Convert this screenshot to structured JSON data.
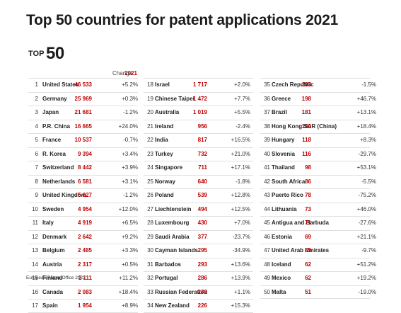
{
  "title": "Top 50 countries for patent applications 2021",
  "badge": {
    "top": "TOP",
    "num": "50"
  },
  "header": {
    "year": "2021",
    "change": "Change"
  },
  "footer": "European Patent Office 2022",
  "columns": [
    [
      {
        "rank": "1",
        "name": "United States",
        "value": "46 533",
        "change": "+5.2%"
      },
      {
        "rank": "2",
        "name": "Germany",
        "value": "25 969",
        "change": "+0.3%"
      },
      {
        "rank": "3",
        "name": "Japan",
        "value": "21 681",
        "change": "-1.2%"
      },
      {
        "rank": "4",
        "name": "P.R. China",
        "value": "16 665",
        "change": "+24.0%"
      },
      {
        "rank": "5",
        "name": "France",
        "value": "10 537",
        "change": "-0.7%"
      },
      {
        "rank": "6",
        "name": "R. Korea",
        "value": "9 394",
        "change": "+3.4%"
      },
      {
        "rank": "7",
        "name": "Switzerland",
        "value": "8 442",
        "change": "+3.9%"
      },
      {
        "rank": "8",
        "name": "Netherlands",
        "value": "6 581",
        "change": "+3.1%"
      },
      {
        "rank": "9",
        "name": "United Kingdom",
        "value": "5 627",
        "change": "-1.2%"
      },
      {
        "rank": "10",
        "name": "Sweden",
        "value": "4 954",
        "change": "+12.0%"
      },
      {
        "rank": "11",
        "name": "Italy",
        "value": "4 919",
        "change": "+6.5%"
      },
      {
        "rank": "12",
        "name": "Denmark",
        "value": "2 642",
        "change": "+9.2%"
      },
      {
        "rank": "13",
        "name": "Belgium",
        "value": "2 485",
        "change": "+3.3%"
      },
      {
        "rank": "14",
        "name": "Austria",
        "value": "2 317",
        "change": "+0.5%"
      },
      {
        "rank": "15",
        "name": "Finland",
        "value": "2 111",
        "change": "+11.2%"
      },
      {
        "rank": "16",
        "name": "Canada",
        "value": "2 083",
        "change": "+18.4%"
      },
      {
        "rank": "17",
        "name": "Spain",
        "value": "1 954",
        "change": "+8.9%"
      }
    ],
    [
      {
        "rank": "18",
        "name": "Israel",
        "value": "1 717",
        "change": "+2.0%"
      },
      {
        "rank": "19",
        "name": "Chinese Taipei",
        "value": "1 472",
        "change": "+7.7%"
      },
      {
        "rank": "20",
        "name": "Australia",
        "value": "1 019",
        "change": "+5.5%"
      },
      {
        "rank": "21",
        "name": "Ireland",
        "value": "956",
        "change": "-2.4%"
      },
      {
        "rank": "22",
        "name": "India",
        "value": "817",
        "change": "+16.5%"
      },
      {
        "rank": "23",
        "name": "Turkey",
        "value": "732",
        "change": "+21.0%"
      },
      {
        "rank": "24",
        "name": "Singapore",
        "value": "711",
        "change": "+17.1%"
      },
      {
        "rank": "25",
        "name": "Norway",
        "value": "640",
        "change": "-1.8%"
      },
      {
        "rank": "26",
        "name": "Poland",
        "value": "539",
        "change": "+12.8%"
      },
      {
        "rank": "27",
        "name": "Liechtenstein",
        "value": "494",
        "change": "+12.5%"
      },
      {
        "rank": "28",
        "name": "Luxembourg",
        "value": "430",
        "change": "+7.0%"
      },
      {
        "rank": "29",
        "name": "Saudi Arabia",
        "value": "377",
        "change": "-23.7%"
      },
      {
        "rank": "30",
        "name": "Cayman Islands",
        "value": "295",
        "change": "-34.9%"
      },
      {
        "rank": "31",
        "name": "Barbados",
        "value": "293",
        "change": "+13.6%"
      },
      {
        "rank": "32",
        "name": "Portugal",
        "value": "286",
        "change": "+13.9%"
      },
      {
        "rank": "33",
        "name": "Russian Federation",
        "value": "272",
        "change": "+1.1%"
      },
      {
        "rank": "34",
        "name": "New Zealand",
        "value": "226",
        "change": "+15.3%"
      }
    ],
    [
      {
        "rank": "35",
        "name": "Czech Republic",
        "value": "203",
        "change": "-1.5%"
      },
      {
        "rank": "36",
        "name": "Greece",
        "value": "198",
        "change": "+46.7%"
      },
      {
        "rank": "37",
        "name": "Brazil",
        "value": "181",
        "change": "+13.1%"
      },
      {
        "rank": "38",
        "name": "Hong Kong SAR (China)",
        "value": "180",
        "change": "+18.4%"
      },
      {
        "rank": "39",
        "name": "Hungary",
        "value": "118",
        "change": "+8.3%"
      },
      {
        "rank": "40",
        "name": "Slovenia",
        "value": "116",
        "change": "-29.7%"
      },
      {
        "rank": "41",
        "name": "Thailand",
        "value": "98",
        "change": "+53.1%"
      },
      {
        "rank": "42",
        "name": "South Africa",
        "value": "86",
        "change": "-5.5%"
      },
      {
        "rank": "43",
        "name": "Puerto Rico",
        "value": "78",
        "change": "-75.2%"
      },
      {
        "rank": "44",
        "name": "Lithuania",
        "value": "73",
        "change": "+46.0%"
      },
      {
        "rank": "45",
        "name": "Antigua and Barbuda",
        "value": "71",
        "change": "-27.6%"
      },
      {
        "rank": "46",
        "name": "Estonia",
        "value": "69",
        "change": "+21.1%"
      },
      {
        "rank": "47",
        "name": "United Arab Emirates",
        "value": "65",
        "change": "-9.7%"
      },
      {
        "rank": "48",
        "name": "Iceland",
        "value": "62",
        "change": "+51.2%"
      },
      {
        "rank": "49",
        "name": "Mexico",
        "value": "62",
        "change": "+19.2%"
      },
      {
        "rank": "50",
        "name": "Malta",
        "value": "51",
        "change": "-19.0%"
      }
    ]
  ]
}
